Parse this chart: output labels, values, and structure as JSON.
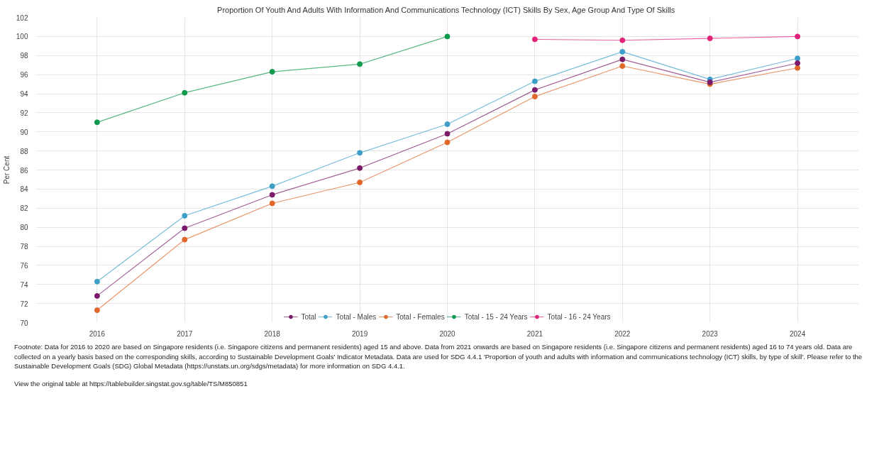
{
  "chart_data": {
    "type": "line",
    "title": "Proportion Of Youth And Adults With Information And Communications Technology (ICT) Skills By Sex, Age Group And Type Of Skills",
    "ylabel": "Per Cent",
    "categories": [
      "2016",
      "2017",
      "2018",
      "2019",
      "2020",
      "2021",
      "2022",
      "2023",
      "2024"
    ],
    "series": [
      {
        "name": "Total",
        "color": "#7b1a6b",
        "values": [
          72.8,
          79.9,
          83.4,
          86.2,
          89.8,
          94.4,
          97.6,
          95.2,
          97.2
        ]
      },
      {
        "name": "Total - Males",
        "color": "#3d9fc8",
        "values": [
          74.3,
          81.2,
          84.3,
          87.8,
          90.8,
          95.3,
          98.4,
          95.5,
          97.7
        ]
      },
      {
        "name": "Total - Females",
        "color": "#e0682a",
        "values": [
          71.3,
          78.7,
          82.5,
          84.7,
          88.9,
          93.7,
          96.9,
          95.0,
          96.7
        ]
      },
      {
        "name": "Total - 15 - 24 Years",
        "color": "#0f9a4e",
        "values": [
          91.0,
          94.1,
          96.3,
          97.1,
          100.0,
          null,
          null,
          null,
          null
        ]
      },
      {
        "name": "Total - 16 - 24 Years",
        "color": "#e0237a",
        "values": [
          null,
          null,
          null,
          null,
          null,
          99.7,
          99.6,
          99.8,
          100.0
        ]
      }
    ],
    "ylim": [
      70,
      102
    ],
    "yticks": [
      70,
      72,
      74,
      76,
      78,
      80,
      82,
      84,
      86,
      88,
      90,
      92,
      94,
      96,
      98,
      100,
      102
    ],
    "grid": true,
    "legend": "bottom",
    "marker": "circle",
    "line_style": "solid",
    "annotations": [
      "Footnote: Data for 2016 to 2020 are based on Singapore residents (i.e. Singapore citizens and permanent residents) aged 15 and above. Data from 2021 onwards are based on Singapore residents (i.e. Singapore citizens and permanent residents) aged 16 to 74 years old. Data are collected on a yearly basis based on the corresponding skills, according to Sustainable Development Goals' Indicator Metadata. Data are used for SDG 4.4.1 'Proportion of youth and adults with information and communications technology (ICT) skills, by type of skill'. Please refer to the Sustainable Development Goals (SDG) Global Metadata (https://unstats.un.org/sdgs/metadata) for more information on SDG 4.4.1.",
      "View the original table at https://tablebuilder.singstat.gov.sg/table/TS/M850851"
    ]
  }
}
